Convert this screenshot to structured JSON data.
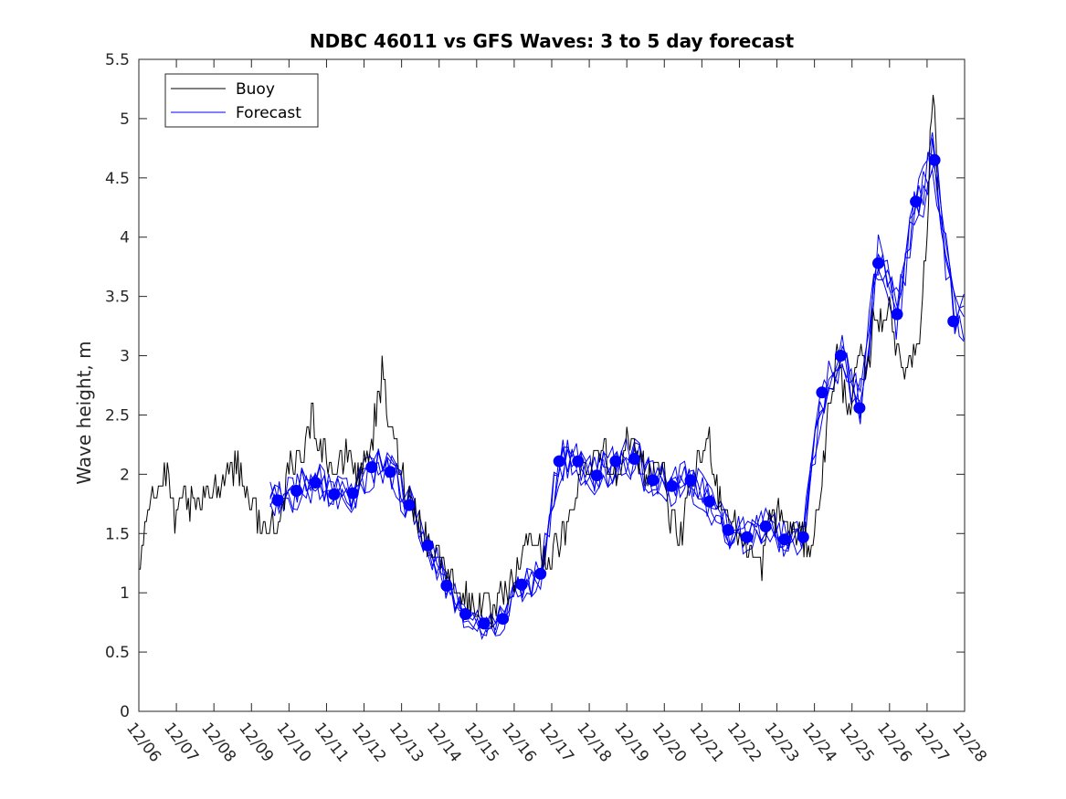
{
  "chart_data": {
    "type": "line",
    "title": "NDBC 46011 vs GFS Waves: 3 to 5 day forecast",
    "xlabel": "",
    "ylabel": "Wave height, m",
    "ylim": [
      0,
      5.5
    ],
    "xlim": [
      0,
      22
    ],
    "yticks": [
      0,
      0.5,
      1,
      1.5,
      2,
      2.5,
      3,
      3.5,
      4,
      4.5,
      5,
      5.5
    ],
    "ytick_labels": [
      "0",
      "0.5",
      "1",
      "1.5",
      "2",
      "2.5",
      "3",
      "3.5",
      "4",
      "4.5",
      "5",
      "5.5"
    ],
    "xtick_labels": [
      "12/06",
      "12/07",
      "12/08",
      "12/09",
      "12/10",
      "12/11",
      "12/12",
      "12/13",
      "12/14",
      "12/15",
      "12/16",
      "12/17",
      "12/18",
      "12/19",
      "12/20",
      "12/21",
      "12/22",
      "12/23",
      "12/24",
      "12/25",
      "12/26",
      "12/27",
      "12/28"
    ],
    "legend": {
      "position": "top-left",
      "entries": [
        "Buoy",
        "Forecast"
      ]
    },
    "colors": {
      "buoy": "#000000",
      "forecast": "#0000ff"
    },
    "series": [
      {
        "name": "Buoy",
        "color": "#000000",
        "x": [
          0,
          0.05,
          0.1,
          0.2,
          0.3,
          0.4,
          0.5,
          0.6,
          0.7,
          0.8,
          0.9,
          1.0,
          1.2,
          1.5,
          1.8,
          2.0,
          2.3,
          2.6,
          2.8,
          3.0,
          3.2,
          3.4,
          3.6,
          3.8,
          4.0,
          4.2,
          4.4,
          4.6,
          4.8,
          5.0,
          5.2,
          5.4,
          5.6,
          5.8,
          6.0,
          6.2,
          6.4,
          6.5,
          6.6,
          6.8,
          7.0,
          7.2,
          7.4,
          7.6,
          7.8,
          8.0,
          8.2,
          8.4,
          8.6,
          8.8,
          9.0,
          9.2,
          9.4,
          9.6,
          9.8,
          10.0,
          10.2,
          10.4,
          10.6,
          10.8,
          11.0,
          11.2,
          11.4,
          11.6,
          11.8,
          12.0,
          12.2,
          12.4,
          12.6,
          12.8,
          13.0,
          13.2,
          13.4,
          13.6,
          13.8,
          14.0,
          14.2,
          14.4,
          14.6,
          14.8,
          15.0,
          15.2,
          15.4,
          15.6,
          15.8,
          16.0,
          16.2,
          16.4,
          16.6,
          16.8,
          17.0,
          17.2,
          17.4,
          17.6,
          17.8,
          18.0,
          18.2,
          18.4,
          18.6,
          18.8,
          19.0,
          19.2,
          19.4,
          19.6,
          19.8,
          20.0,
          20.2,
          20.4,
          20.6,
          20.8,
          21.0,
          21.1,
          21.2,
          21.3
        ],
        "values": [
          1.2,
          1.3,
          1.5,
          1.7,
          1.8,
          1.9,
          1.8,
          1.9,
          2.0,
          1.9,
          1.7,
          1.6,
          1.8,
          1.7,
          1.8,
          1.9,
          2.0,
          2.1,
          1.9,
          1.8,
          1.6,
          1.5,
          1.6,
          1.7,
          2.0,
          2.1,
          2.2,
          2.5,
          2.3,
          2.2,
          2.0,
          2.1,
          2.2,
          2.0,
          2.1,
          2.3,
          2.6,
          2.9,
          2.5,
          2.3,
          2.0,
          1.8,
          1.7,
          1.5,
          1.4,
          1.3,
          1.2,
          1.1,
          1.0,
          0.9,
          0.9,
          0.9,
          0.8,
          0.9,
          1.0,
          1.1,
          1.3,
          1.5,
          1.4,
          1.3,
          1.3,
          1.4,
          1.5,
          1.8,
          2.0,
          2.1,
          2.2,
          2.2,
          2.0,
          2.1,
          2.3,
          2.2,
          2.1,
          2.0,
          2.1,
          2.0,
          1.6,
          1.4,
          1.7,
          2.0,
          2.2,
          2.3,
          1.9,
          1.7,
          1.6,
          1.5,
          1.4,
          1.3,
          1.2,
          1.6,
          1.7,
          1.6,
          1.5,
          1.5,
          1.4,
          1.5,
          2.0,
          2.6,
          3.0,
          2.7,
          2.6,
          3.0,
          2.8,
          3.4,
          3.2,
          3.5,
          3.0,
          2.9,
          3.0,
          3.2,
          4.0,
          5.0,
          5.2,
          4.2
        ]
      },
      {
        "name": "Forecast",
        "color": "#0000ff",
        "x": [
          3.7,
          4.2,
          4.7,
          5.2,
          5.7,
          6.2,
          6.7,
          7.2,
          7.7,
          8.2,
          8.7,
          9.2,
          9.7,
          10.2,
          10.7,
          11.2,
          11.7,
          12.2,
          12.7,
          13.2,
          13.7,
          14.2,
          14.7,
          15.2,
          15.7,
          16.2,
          16.7,
          17.2,
          17.7,
          18.2,
          18.7,
          19.2,
          19.7,
          20.2,
          20.7,
          21.2,
          21.7
        ],
        "values": [
          1.78,
          1.86,
          1.93,
          1.83,
          1.84,
          2.06,
          2.02,
          1.74,
          1.4,
          1.06,
          0.82,
          0.74,
          0.78,
          1.07,
          1.16,
          2.11,
          2.11,
          1.99,
          2.11,
          2.13,
          1.95,
          1.9,
          1.95,
          1.77,
          1.53,
          1.47,
          1.56,
          1.45,
          1.47,
          2.69,
          3.0,
          2.56,
          3.78,
          3.35,
          4.3,
          4.65,
          3.29
        ]
      }
    ]
  }
}
